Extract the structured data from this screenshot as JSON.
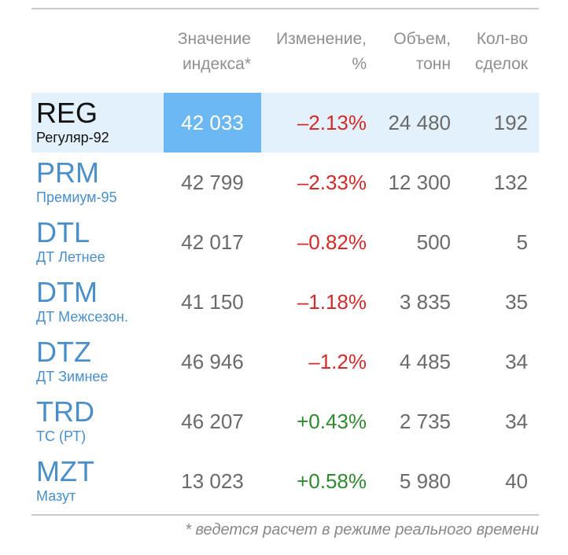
{
  "header": {
    "index_line1": "Значение",
    "index_line2": "индекса*",
    "change_line1": "Изменение,",
    "change_line2": "%",
    "volume_line1": "Объем,",
    "volume_line2": "тонн",
    "deals_line1": "Кол-во",
    "deals_line2": "сделок"
  },
  "rows": [
    {
      "code": "REG",
      "name": "Регуляр-92",
      "index": "42 033",
      "change": "–2.13%",
      "change_sign": "neg",
      "volume": "24 480",
      "deals": "192",
      "selected": true
    },
    {
      "code": "PRM",
      "name": "Премиум-95",
      "index": "42 799",
      "change": "–2.33%",
      "change_sign": "neg",
      "volume": "12 300",
      "deals": "132",
      "selected": false
    },
    {
      "code": "DTL",
      "name": "ДТ Летнее",
      "index": "42 017",
      "change": "–0.82%",
      "change_sign": "neg",
      "volume": "500",
      "deals": "5",
      "selected": false
    },
    {
      "code": "DTM",
      "name": "ДТ Межсезон.",
      "index": "41 150",
      "change": "–1.18%",
      "change_sign": "neg",
      "volume": "3 835",
      "deals": "35",
      "selected": false
    },
    {
      "code": "DTZ",
      "name": "ДТ Зимнее",
      "index": "46 946",
      "change": "–1.2%",
      "change_sign": "neg",
      "volume": "4 485",
      "deals": "34",
      "selected": false
    },
    {
      "code": "TRD",
      "name": "ТС (РТ)",
      "index": "46 207",
      "change": "+0.43%",
      "change_sign": "pos",
      "volume": "2 735",
      "deals": "34",
      "selected": false
    },
    {
      "code": "MZT",
      "name": "Мазут",
      "index": "13 023",
      "change": "+0.58%",
      "change_sign": "pos",
      "volume": "5 980",
      "deals": "40",
      "selected": false
    }
  ],
  "footnote": "* ведется расчет в режиме реального времени",
  "colors": {
    "selected_row_bg": "#e3f1fc",
    "selected_index_bg": "#6cb8f2",
    "code_link": "#4a8fc9",
    "negative": "#d32a2a",
    "positive": "#2e8a2e"
  }
}
